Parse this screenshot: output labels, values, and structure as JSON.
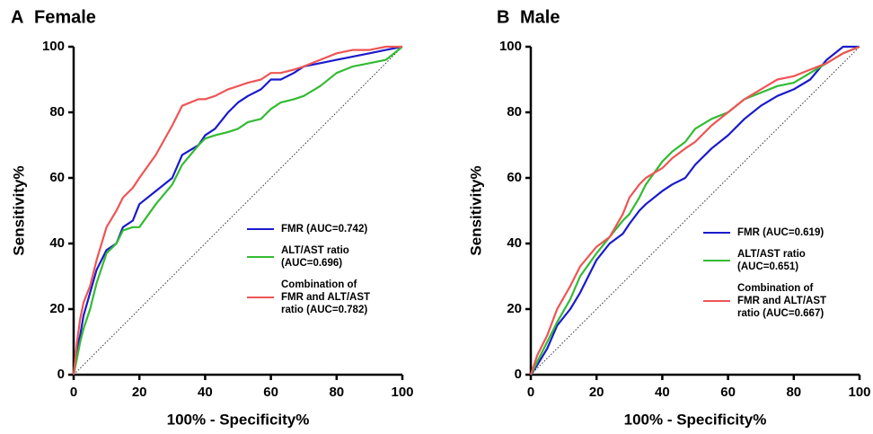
{
  "chart_data": [
    {
      "type": "line",
      "panel_label": "A",
      "title": "Female",
      "x_label": "100% - Specificity%",
      "y_label": "Sensitivity%",
      "x": [
        0,
        1,
        2,
        3,
        5,
        7,
        10,
        13,
        15,
        18,
        20,
        25,
        30,
        33,
        38,
        40,
        43,
        47,
        50,
        53,
        57,
        60,
        63,
        67,
        70,
        75,
        80,
        85,
        90,
        95,
        100
      ],
      "series": [
        {
          "name": "FMR (AUC=0.742)",
          "color": "#1a1acc",
          "values": [
            0,
            8,
            12,
            18,
            25,
            32,
            38,
            40,
            45,
            47,
            52,
            56,
            60,
            67,
            70,
            73,
            75,
            80,
            83,
            85,
            87,
            90,
            90,
            92,
            94,
            95,
            96,
            97,
            98,
            99,
            100
          ]
        },
        {
          "name": "ALT/AST ratio\n (AUC=0.696)",
          "color": "#33bb33",
          "values": [
            0,
            5,
            10,
            14,
            20,
            28,
            37,
            40,
            44,
            45,
            45,
            52,
            58,
            64,
            70,
            72,
            73,
            74,
            75,
            77,
            78,
            81,
            83,
            84,
            85,
            88,
            92,
            94,
            95,
            96,
            100
          ]
        },
        {
          "name": "Combination of\nFMR and ALT/AST\nratio (AUC=0.782)",
          "color": "#ee5555",
          "values": [
            0,
            10,
            17,
            22,
            27,
            35,
            45,
            50,
            54,
            57,
            60,
            67,
            76,
            82,
            84,
            84,
            85,
            87,
            88,
            89,
            90,
            92,
            92,
            93,
            94,
            96,
            98,
            99,
            99,
            100,
            100
          ]
        }
      ],
      "xlim": [
        0,
        100
      ],
      "ylim": [
        0,
        100
      ],
      "xticks": [
        0,
        20,
        40,
        60,
        80,
        100
      ],
      "yticks": [
        0,
        20,
        40,
        60,
        80,
        100
      ]
    },
    {
      "type": "line",
      "panel_label": "B",
      "title": "Male",
      "x_label": "100% - Specificity%",
      "y_label": "Sensitivity%",
      "x": [
        0,
        2,
        5,
        8,
        12,
        15,
        20,
        24,
        28,
        30,
        33,
        35,
        40,
        43,
        47,
        50,
        55,
        60,
        65,
        70,
        75,
        80,
        85,
        90,
        95,
        100
      ],
      "series": [
        {
          "name": "FMR (AUC=0.619)",
          "color": "#1a1acc",
          "values": [
            0,
            3,
            8,
            15,
            20,
            25,
            35,
            40,
            43,
            46,
            50,
            52,
            56,
            58,
            60,
            64,
            69,
            73,
            78,
            82,
            85,
            87,
            90,
            96,
            100,
            100
          ]
        },
        {
          "name": "ALT/AST ratio\n(AUC=0.651)",
          "color": "#33bb33",
          "values": [
            0,
            4,
            10,
            16,
            23,
            30,
            37,
            42,
            47,
            49,
            54,
            58,
            65,
            68,
            71,
            75,
            78,
            80,
            84,
            86,
            88,
            89,
            92,
            95,
            98,
            100
          ]
        },
        {
          "name": "Combination of\nFMR and ALT/AST\nratio (AUC=0.667)",
          "color": "#ee5555",
          "values": [
            0,
            6,
            12,
            20,
            27,
            33,
            39,
            42,
            49,
            54,
            58,
            60,
            63,
            66,
            69,
            71,
            76,
            80,
            84,
            87,
            90,
            91,
            93,
            95,
            98,
            100
          ]
        }
      ],
      "xlim": [
        0,
        100
      ],
      "ylim": [
        0,
        100
      ],
      "xticks": [
        0,
        20,
        40,
        60,
        80,
        100
      ],
      "yticks": [
        0,
        20,
        40,
        60,
        80,
        100
      ]
    }
  ]
}
